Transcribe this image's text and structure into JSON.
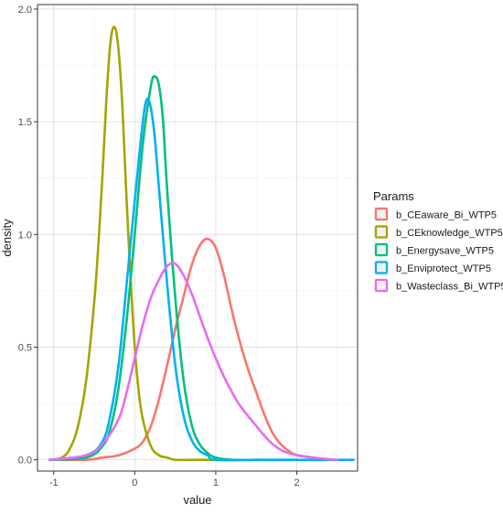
{
  "chart_data": {
    "type": "line",
    "subtype": "density",
    "title": "",
    "xlabel": "value",
    "ylabel": "density",
    "xlim": [
      -1.2,
      2.75
    ],
    "ylim": [
      -0.05,
      2.02
    ],
    "x_ticks": [
      -1,
      0,
      1,
      2
    ],
    "y_ticks": [
      0.0,
      0.5,
      1.0,
      1.5,
      2.0
    ],
    "x_tick_labels": [
      "-1",
      "0",
      "1",
      "2"
    ],
    "y_tick_labels": [
      "0.0",
      "0.5",
      "1.0",
      "1.5",
      "2.0"
    ],
    "grid": true,
    "legend": {
      "title": "Params",
      "placement": "right"
    },
    "series": [
      {
        "name": "b_CEaware_Bi_WTP5",
        "color": "#F8766D",
        "x": [
          -1.05,
          -0.6,
          -0.4,
          -0.2,
          0.0,
          0.1,
          0.2,
          0.3,
          0.4,
          0.5,
          0.6,
          0.7,
          0.8,
          0.9,
          1.0,
          1.1,
          1.2,
          1.3,
          1.4,
          1.5,
          1.6,
          1.7,
          1.8,
          1.9,
          2.0,
          2.2,
          2.4,
          2.7
        ],
        "values": [
          0.0,
          0.0,
          0.01,
          0.02,
          0.05,
          0.08,
          0.15,
          0.27,
          0.42,
          0.58,
          0.72,
          0.86,
          0.95,
          0.98,
          0.94,
          0.82,
          0.66,
          0.52,
          0.4,
          0.3,
          0.2,
          0.12,
          0.07,
          0.04,
          0.02,
          0.01,
          0.0,
          0.0
        ]
      },
      {
        "name": "b_CEknowledge_WTP5",
        "color": "#A3A500",
        "x": [
          -1.05,
          -0.9,
          -0.8,
          -0.7,
          -0.6,
          -0.5,
          -0.45,
          -0.4,
          -0.35,
          -0.3,
          -0.25,
          -0.2,
          -0.15,
          -0.1,
          -0.05,
          0.0,
          0.05,
          0.1,
          0.2,
          0.3,
          0.4,
          0.5,
          0.7,
          1.0
        ],
        "values": [
          0.0,
          0.01,
          0.05,
          0.15,
          0.35,
          0.7,
          0.95,
          1.25,
          1.6,
          1.85,
          1.92,
          1.82,
          1.55,
          1.15,
          0.8,
          0.5,
          0.3,
          0.18,
          0.06,
          0.02,
          0.01,
          0.0,
          0.0,
          0.0
        ]
      },
      {
        "name": "b_Energysave_WTP5",
        "color": "#00BF7D",
        "x": [
          -1.05,
          -0.6,
          -0.4,
          -0.3,
          -0.2,
          -0.1,
          0.0,
          0.1,
          0.2,
          0.25,
          0.3,
          0.35,
          0.4,
          0.5,
          0.6,
          0.7,
          0.8,
          0.9,
          1.0,
          1.2,
          1.5,
          2.0
        ],
        "values": [
          0.0,
          0.01,
          0.06,
          0.14,
          0.32,
          0.62,
          1.0,
          1.4,
          1.66,
          1.7,
          1.66,
          1.5,
          1.2,
          0.72,
          0.36,
          0.16,
          0.07,
          0.03,
          0.01,
          0.0,
          0.0,
          0.0
        ]
      },
      {
        "name": "b_Enviprotect_WTP5",
        "color": "#00B0F6",
        "x": [
          -1.05,
          -0.6,
          -0.4,
          -0.3,
          -0.2,
          -0.1,
          0.0,
          0.1,
          0.15,
          0.2,
          0.25,
          0.3,
          0.4,
          0.5,
          0.6,
          0.7,
          0.8,
          0.9,
          1.0,
          1.5,
          2.0,
          2.7
        ],
        "values": [
          0.0,
          0.02,
          0.08,
          0.2,
          0.42,
          0.78,
          1.15,
          1.5,
          1.6,
          1.56,
          1.42,
          1.2,
          0.78,
          0.42,
          0.2,
          0.09,
          0.04,
          0.02,
          0.0,
          0.0,
          0.0,
          0.0
        ]
      },
      {
        "name": "b_Wasteclass_Bi_WTP5",
        "color": "#E76BF3",
        "x": [
          -1.05,
          -0.6,
          -0.4,
          -0.2,
          -0.1,
          0.0,
          0.1,
          0.2,
          0.3,
          0.4,
          0.5,
          0.6,
          0.7,
          0.8,
          0.9,
          1.0,
          1.1,
          1.2,
          1.3,
          1.5,
          1.7,
          1.9,
          2.2,
          2.5
        ],
        "values": [
          0.0,
          0.02,
          0.07,
          0.18,
          0.3,
          0.45,
          0.6,
          0.72,
          0.8,
          0.86,
          0.87,
          0.82,
          0.74,
          0.64,
          0.54,
          0.45,
          0.37,
          0.3,
          0.24,
          0.15,
          0.07,
          0.03,
          0.01,
          0.0
        ]
      }
    ]
  }
}
